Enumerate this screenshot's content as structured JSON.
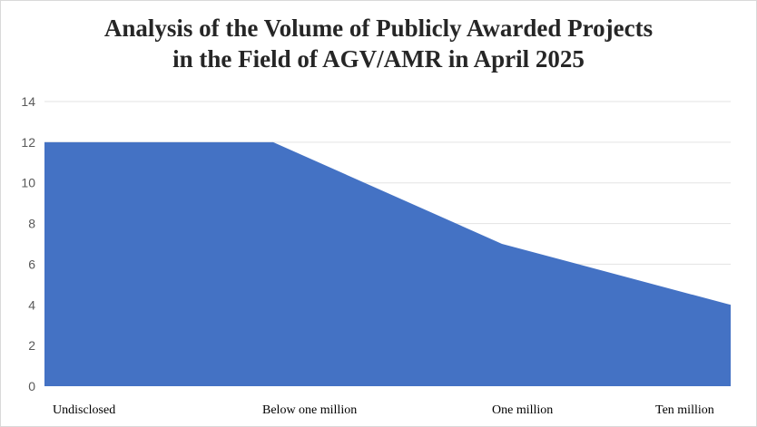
{
  "chart_data": {
    "type": "area",
    "title_lines": [
      "Analysis of the Volume of Publicly Awarded Projects",
      "in the Field of AGV/AMR in April 2025"
    ],
    "categories": [
      "Undisclosed",
      "Below one million",
      "One million",
      "Ten million"
    ],
    "values": [
      12,
      12,
      7,
      4
    ],
    "y_ticks": [
      "0",
      "2",
      "4",
      "6",
      "8",
      "10",
      "12",
      "14"
    ],
    "ylim": [
      0,
      14
    ],
    "grid": true,
    "legend": "none",
    "colors": {
      "area": "#4472C4",
      "grid": "#e3e3e3"
    }
  }
}
